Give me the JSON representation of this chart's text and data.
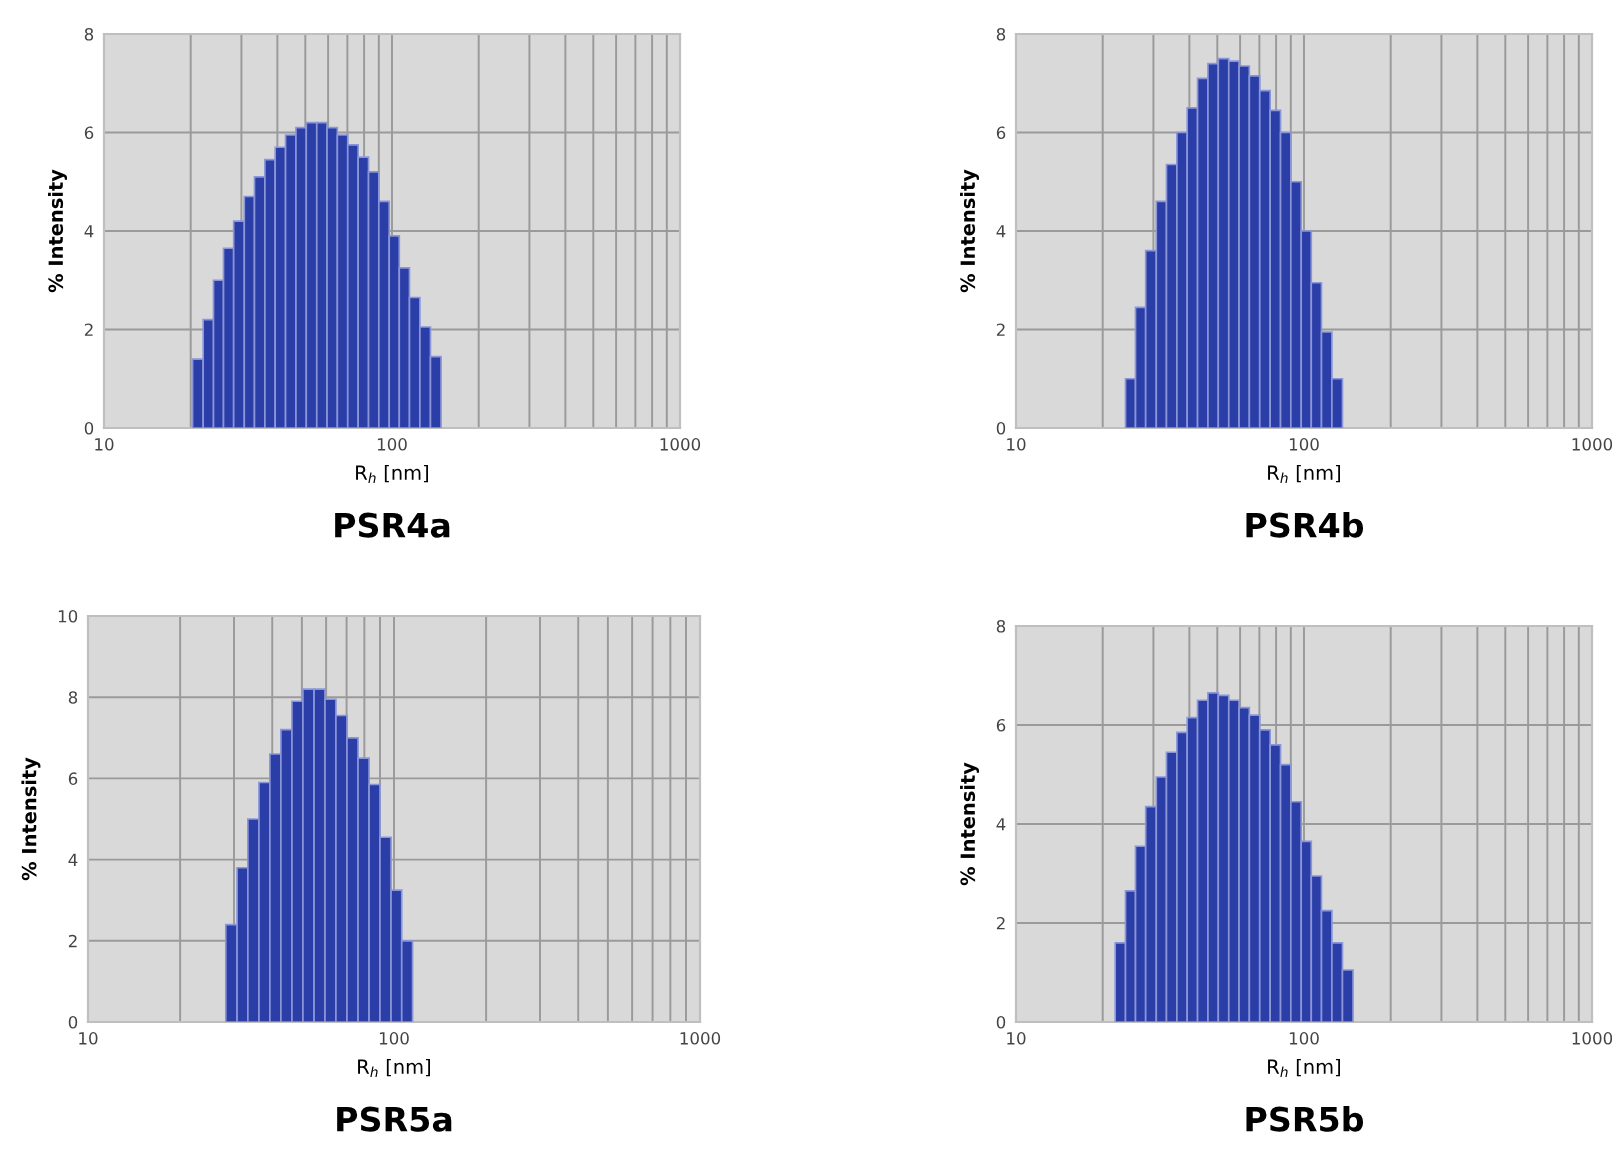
{
  "chart_data": [
    {
      "type": "histogram",
      "title": "PSR4a",
      "xlabel": "R$_{h}$ [nm]",
      "ylabel": "% Intensity",
      "log": "x",
      "grid": true,
      "color": "#2b3ea8",
      "xlim": [
        10,
        1000
      ],
      "ylim": [
        0,
        8
      ],
      "yticks": [
        0,
        2,
        4,
        6,
        8
      ],
      "xticks": [
        10,
        {
          "value": 20,
          "label": null
        },
        {
          "value": 30,
          "label": null
        },
        {
          "value": 40,
          "label": null
        },
        {
          "value": 50,
          "label": null
        },
        {
          "value": 60,
          "label": null
        },
        {
          "value": 70,
          "label": null
        },
        {
          "value": 80,
          "label": null
        },
        {
          "value": 90,
          "label": null
        },
        100,
        {
          "value": 200,
          "label": null
        },
        {
          "value": 300,
          "label": null
        },
        {
          "value": 400,
          "label": null
        },
        {
          "value": 500,
          "label": null
        },
        {
          "value": 600,
          "label": null
        },
        {
          "value": 700,
          "label": null
        },
        {
          "value": 800,
          "label": null
        },
        {
          "value": 900,
          "label": null
        },
        1000
      ],
      "bins": [
        20.3,
        22.1,
        24.0,
        26.0,
        28.2,
        30.7,
        33.3,
        36.2,
        39.3,
        42.7,
        46.4,
        50.4,
        54.8,
        59.5,
        64.6,
        70.2,
        76.3,
        82.9,
        90.0,
        97.8,
        106,
        115,
        125,
        136,
        148
      ],
      "values": [
        1.4,
        2.2,
        3.0,
        3.65,
        4.2,
        4.7,
        5.1,
        5.45,
        5.7,
        5.95,
        6.1,
        6.2,
        6.2,
        6.1,
        5.95,
        5.75,
        5.5,
        5.2,
        4.6,
        3.9,
        3.25,
        2.65,
        2.05,
        1.45
      ]
    },
    {
      "type": "histogram",
      "title": "PSR4b",
      "xlabel": "R$_{h}$ [nm]",
      "ylabel": "% Intensity",
      "log": "x",
      "grid": true,
      "color": "#2b3ea8",
      "xlim": [
        10,
        1000
      ],
      "ylim": [
        0,
        8
      ],
      "yticks": [
        0,
        2,
        4,
        6,
        8
      ],
      "xticks": [
        10,
        {
          "value": 20,
          "label": null
        },
        {
          "value": 30,
          "label": null
        },
        {
          "value": 40,
          "label": null
        },
        {
          "value": 50,
          "label": null
        },
        {
          "value": 60,
          "label": null
        },
        {
          "value": 70,
          "label": null
        },
        {
          "value": 80,
          "label": null
        },
        {
          "value": 90,
          "label": null
        },
        100,
        {
          "value": 200,
          "label": null
        },
        {
          "value": 300,
          "label": null
        },
        {
          "value": 400,
          "label": null
        },
        {
          "value": 500,
          "label": null
        },
        {
          "value": 600,
          "label": null
        },
        {
          "value": 700,
          "label": null
        },
        {
          "value": 800,
          "label": null
        },
        {
          "value": 900,
          "label": null
        },
        1000
      ],
      "bins": [
        24.0,
        26.0,
        28.2,
        30.7,
        33.3,
        36.2,
        39.3,
        42.7,
        46.4,
        50.4,
        54.8,
        59.5,
        64.6,
        70.2,
        76.3,
        82.9,
        90.0,
        97.8,
        106,
        115,
        125,
        136
      ],
      "values": [
        1.0,
        2.45,
        3.6,
        4.6,
        5.35,
        6.0,
        6.5,
        7.1,
        7.4,
        7.5,
        7.45,
        7.35,
        7.15,
        6.85,
        6.45,
        6.0,
        5.0,
        4.0,
        2.95,
        1.95,
        1.0
      ]
    },
    {
      "type": "histogram",
      "title": "PSR5a",
      "xlabel": "R$_{h}$ [nm]",
      "ylabel": "% Intensity",
      "log": "x",
      "grid": true,
      "color": "#2b3ea8",
      "xlim": [
        10,
        1000
      ],
      "ylim": [
        0,
        10
      ],
      "yticks": [
        0,
        2,
        4,
        6,
        8,
        10
      ],
      "xticks": [
        10,
        {
          "value": 20,
          "label": null
        },
        {
          "value": 30,
          "label": null
        },
        {
          "value": 40,
          "label": null
        },
        {
          "value": 50,
          "label": null
        },
        {
          "value": 60,
          "label": null
        },
        {
          "value": 70,
          "label": null
        },
        {
          "value": 80,
          "label": null
        },
        {
          "value": 90,
          "label": null
        },
        100,
        {
          "value": 200,
          "label": null
        },
        {
          "value": 300,
          "label": null
        },
        {
          "value": 400,
          "label": null
        },
        {
          "value": 500,
          "label": null
        },
        {
          "value": 600,
          "label": null
        },
        {
          "value": 700,
          "label": null
        },
        {
          "value": 800,
          "label": null
        },
        {
          "value": 900,
          "label": null
        },
        1000
      ],
      "bins": [
        28.2,
        30.7,
        33.3,
        36.2,
        39.3,
        42.7,
        46.4,
        50.4,
        54.8,
        59.5,
        64.6,
        70.2,
        76.3,
        82.9,
        90.0,
        97.8,
        106,
        115
      ],
      "values": [
        2.4,
        3.8,
        5.0,
        5.9,
        6.6,
        7.2,
        7.9,
        8.2,
        8.2,
        7.95,
        7.55,
        7.0,
        6.5,
        5.85,
        4.55,
        3.25,
        2.0
      ]
    },
    {
      "type": "histogram",
      "title": "PSR5b",
      "xlabel": "R$_{h}$ [nm]",
      "ylabel": "% Intensity",
      "log": "x",
      "grid": true,
      "color": "#2b3ea8",
      "xlim": [
        10,
        1000
      ],
      "ylim": [
        0,
        8
      ],
      "yticks": [
        0,
        2,
        4,
        6,
        8
      ],
      "xticks": [
        10,
        {
          "value": 20,
          "label": null
        },
        {
          "value": 30,
          "label": null
        },
        {
          "value": 40,
          "label": null
        },
        {
          "value": 50,
          "label": null
        },
        {
          "value": 60,
          "label": null
        },
        {
          "value": 70,
          "label": null
        },
        {
          "value": 80,
          "label": null
        },
        {
          "value": 90,
          "label": null
        },
        100,
        {
          "value": 200,
          "label": null
        },
        {
          "value": 300,
          "label": null
        },
        {
          "value": 400,
          "label": null
        },
        {
          "value": 500,
          "label": null
        },
        {
          "value": 600,
          "label": null
        },
        {
          "value": 700,
          "label": null
        },
        {
          "value": 800,
          "label": null
        },
        {
          "value": 900,
          "label": null
        },
        1000
      ],
      "bins": [
        22.1,
        24.0,
        26.0,
        28.2,
        30.7,
        33.3,
        36.2,
        39.3,
        42.7,
        46.4,
        50.4,
        54.8,
        59.5,
        64.6,
        70.2,
        76.3,
        82.9,
        90.0,
        97.8,
        106,
        115,
        125,
        136,
        148
      ],
      "values": [
        1.6,
        2.65,
        3.55,
        4.35,
        4.95,
        5.45,
        5.85,
        6.15,
        6.5,
        6.65,
        6.6,
        6.5,
        6.35,
        6.2,
        5.9,
        5.6,
        5.2,
        4.45,
        3.65,
        2.95,
        2.25,
        1.6,
        1.05
      ]
    }
  ]
}
